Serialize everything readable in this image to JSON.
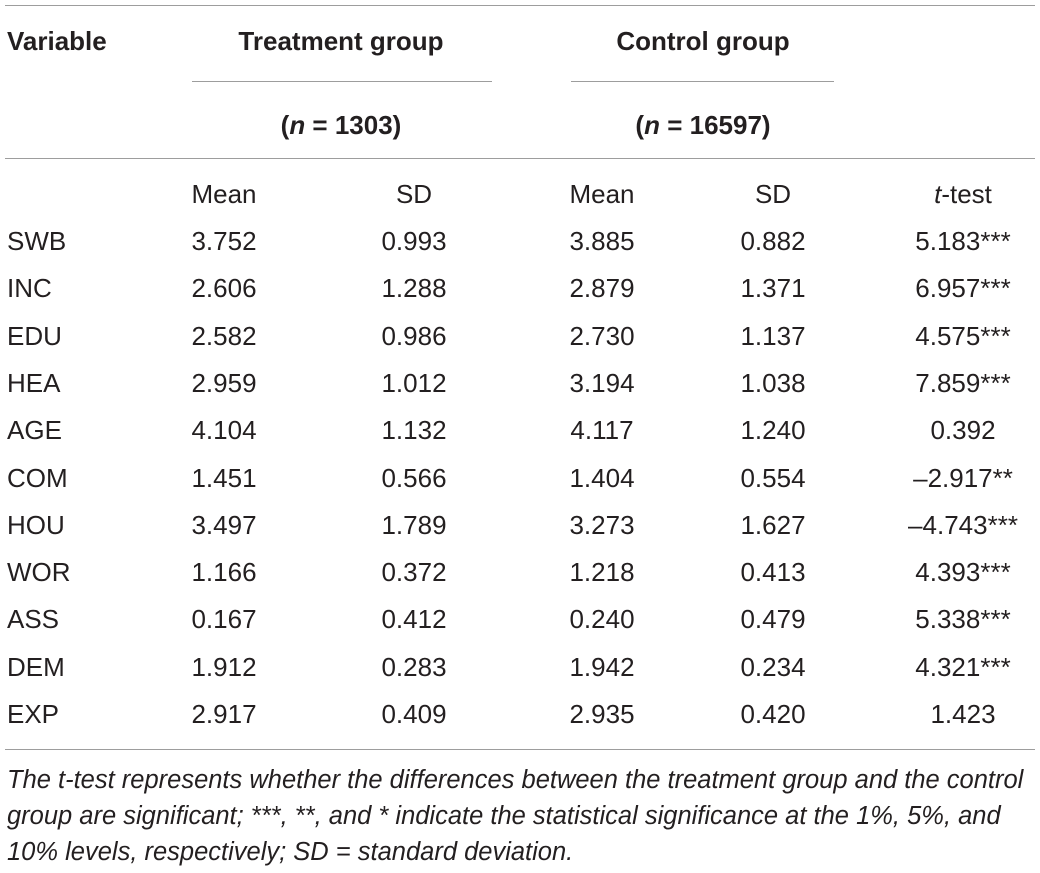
{
  "table": {
    "header": {
      "variable_label": "Variable",
      "treatment_label": "Treatment group",
      "treatment_n_open": "(",
      "treatment_n_var": "n",
      "treatment_n_rest": " = 1303)",
      "control_label": "Control group",
      "control_n_open": "(",
      "control_n_var": "n",
      "control_n_rest": " = 16597)"
    },
    "subheader": {
      "mean1": "Mean",
      "sd1": "SD",
      "mean2": "Mean",
      "sd2": "SD",
      "ttest_var": "t",
      "ttest_rest": "-test"
    },
    "rows": [
      {
        "var": "SWB",
        "m1": "3.752",
        "sd1": "0.993",
        "m2": "3.885",
        "sd2": "0.882",
        "t": "5.183***"
      },
      {
        "var": "INC",
        "m1": "2.606",
        "sd1": "1.288",
        "m2": "2.879",
        "sd2": "1.371",
        "t": "6.957***"
      },
      {
        "var": "EDU",
        "m1": "2.582",
        "sd1": "0.986",
        "m2": "2.730",
        "sd2": "1.137",
        "t": "4.575***"
      },
      {
        "var": "HEA",
        "m1": "2.959",
        "sd1": "1.012",
        "m2": "3.194",
        "sd2": "1.038",
        "t": "7.859***"
      },
      {
        "var": "AGE",
        "m1": "4.104",
        "sd1": "1.132",
        "m2": "4.117",
        "sd2": "1.240",
        "t": "0.392"
      },
      {
        "var": "COM",
        "m1": "1.451",
        "sd1": "0.566",
        "m2": "1.404",
        "sd2": "0.554",
        "t": "–2.917**"
      },
      {
        "var": "HOU",
        "m1": "3.497",
        "sd1": "1.789",
        "m2": "3.273",
        "sd2": "1.627",
        "t": "–4.743***"
      },
      {
        "var": "WOR",
        "m1": "1.166",
        "sd1": "0.372",
        "m2": "1.218",
        "sd2": "0.413",
        "t": "4.393***"
      },
      {
        "var": "ASS",
        "m1": "0.167",
        "sd1": "0.412",
        "m2": "0.240",
        "sd2": "0.479",
        "t": "5.338***"
      },
      {
        "var": "DEM",
        "m1": "1.912",
        "sd1": "0.283",
        "m2": "1.942",
        "sd2": "0.234",
        "t": "4.321***"
      },
      {
        "var": "EXP",
        "m1": "2.917",
        "sd1": "0.409",
        "m2": "2.935",
        "sd2": "0.420",
        "t": "1.423"
      }
    ],
    "note": "The t-test represents whether the differences between the treatment group and the control group are significant; ***, **, and * indicate the statistical significance at the 1%, 5%, and 10% levels, respectively; SD = standard deviation."
  }
}
